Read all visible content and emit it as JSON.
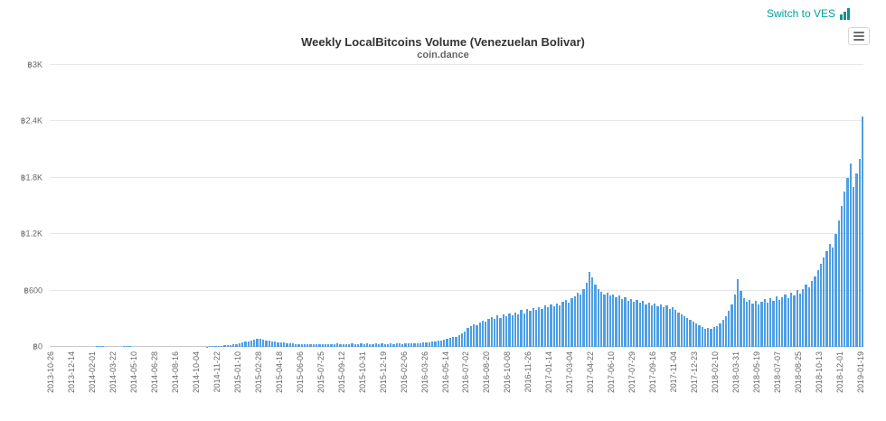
{
  "header": {
    "switch_link_label": "Switch to VES"
  },
  "colors": {
    "accent_teal": "#00a0a0",
    "icon_teal": "#0d9488",
    "bar_blue": "#4f9fe3",
    "grid_line": "#e6e6e6",
    "axis_line": "#c9c9c9",
    "title_text": "#333333",
    "label_text": "#666666"
  },
  "chart_data": {
    "type": "bar",
    "title": "Weekly LocalBitcoins Volume (Venezuelan Bolivar)",
    "subtitle": "coin.dance",
    "currency_symbol": "฿",
    "xlabel": "",
    "ylabel": "",
    "ylim": [
      0,
      3000
    ],
    "grid": true,
    "legend": false,
    "y_ticks": [
      {
        "value": 0,
        "label": "฿0"
      },
      {
        "value": 600,
        "label": "฿600"
      },
      {
        "value": 1200,
        "label": "฿1.2K"
      },
      {
        "value": 1800,
        "label": "฿1.8K"
      },
      {
        "value": 2400,
        "label": "฿2.4K"
      },
      {
        "value": 3000,
        "label": "฿3K"
      }
    ],
    "x_unit": "week",
    "x_label_every_n_bars": 7,
    "x_tick_labels": [
      "2013-10-26",
      "2013-12-14",
      "2014-02-01",
      "2014-03-22",
      "2014-05-10",
      "2014-06-28",
      "2014-08-16",
      "2014-10-04",
      "2014-11-22",
      "2015-01-10",
      "2015-02-28",
      "2015-04-18",
      "2015-06-06",
      "2015-07-25",
      "2015-09-12",
      "2015-10-31",
      "2015-12-19",
      "2016-02-06",
      "2016-03-26",
      "2016-05-14",
      "2016-07-02",
      "2016-08-20",
      "2016-10-08",
      "2016-11-26",
      "2017-01-14",
      "2017-03-04",
      "2017-04-22",
      "2017-06-10",
      "2017-07-29",
      "2017-09-16",
      "2017-11-04",
      "2017-12-23",
      "2018-02-10",
      "2018-03-31",
      "2018-05-19",
      "2018-07-07",
      "2018-08-25",
      "2018-10-13",
      "2018-12-01",
      "2019-01-19"
    ],
    "values": [
      0,
      0,
      0,
      0,
      0,
      0,
      0,
      0,
      0,
      0,
      0,
      0,
      0,
      0,
      0,
      6,
      12,
      9,
      0,
      0,
      0,
      0,
      0,
      0,
      8,
      13,
      7,
      0,
      0,
      0,
      0,
      0,
      0,
      0,
      0,
      0,
      0,
      0,
      0,
      0,
      0,
      0,
      0,
      0,
      0,
      0,
      0,
      0,
      0,
      0,
      0,
      0,
      4,
      5,
      7,
      9,
      11,
      13,
      16,
      19,
      23,
      27,
      32,
      40,
      48,
      55,
      62,
      68,
      75,
      82,
      88,
      80,
      72,
      66,
      60,
      56,
      52,
      48,
      44,
      40,
      37,
      34,
      32,
      30,
      31,
      29,
      28,
      30,
      27,
      29,
      26,
      28,
      30,
      26,
      32,
      28,
      34,
      30,
      27,
      33,
      29,
      35,
      31,
      28,
      34,
      30,
      36,
      32,
      29,
      35,
      31,
      38,
      33,
      30,
      36,
      32,
      38,
      34,
      31,
      37,
      36,
      40,
      38,
      42,
      40,
      45,
      48,
      52,
      58,
      55,
      63,
      70,
      78,
      88,
      98,
      110,
      105,
      125,
      140,
      160,
      200,
      220,
      240,
      230,
      260,
      280,
      270,
      300,
      320,
      300,
      340,
      310,
      350,
      330,
      360,
      340,
      370,
      350,
      390,
      360,
      400,
      380,
      410,
      390,
      420,
      400,
      440,
      420,
      450,
      430,
      460,
      440,
      480,
      500,
      470,
      520,
      540,
      580,
      560,
      620,
      680,
      800,
      740,
      660,
      620,
      590,
      560,
      580,
      550,
      560,
      530,
      550,
      510,
      530,
      490,
      510,
      480,
      500,
      470,
      490,
      450,
      470,
      440,
      460,
      430,
      450,
      420,
      440,
      400,
      420,
      390,
      370,
      350,
      330,
      310,
      290,
      270,
      250,
      230,
      210,
      195,
      205,
      195,
      210,
      225,
      250,
      290,
      330,
      380,
      450,
      560,
      720,
      600,
      520,
      480,
      500,
      460,
      490,
      450,
      480,
      510,
      470,
      520,
      490,
      540,
      500,
      530,
      560,
      520,
      580,
      550,
      610,
      570,
      620,
      660,
      630,
      700,
      750,
      820,
      880,
      950,
      1020,
      1100,
      1060,
      1200,
      1350,
      1500,
      1650,
      1800,
      1950,
      1700,
      1850,
      2000,
      2450
    ]
  }
}
